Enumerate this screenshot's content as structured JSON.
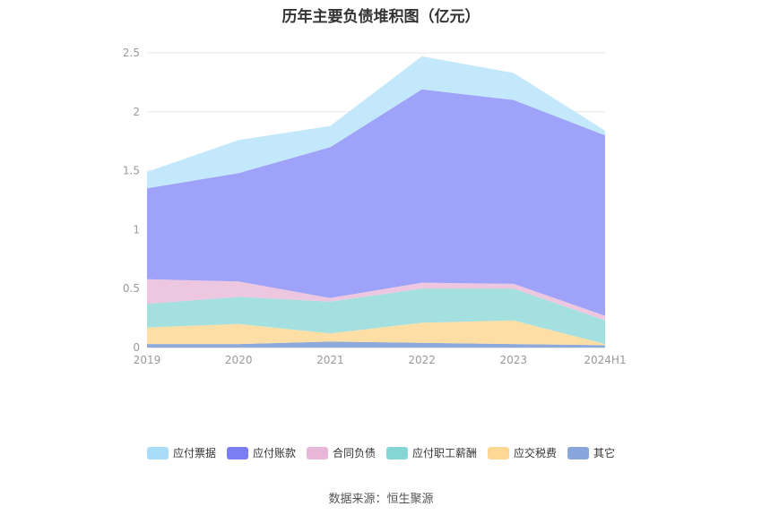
{
  "chart_data": {
    "type": "area",
    "stacked": true,
    "title": "历年主要负债堆积图（亿元）",
    "categories": [
      "2019",
      "2020",
      "2021",
      "2022",
      "2023",
      "2024H1"
    ],
    "ylim": [
      0,
      2.5
    ],
    "yticks": [
      "0",
      "0.5",
      "1",
      "1.5",
      "2",
      "2.5"
    ],
    "grid": true,
    "legend_position": "bottom",
    "series": [
      {
        "name": "其它",
        "color": "#8eaadb",
        "values": [
          0.03,
          0.03,
          0.05,
          0.04,
          0.03,
          0.02
        ]
      },
      {
        "name": "应交税费",
        "color": "#fddea4",
        "values": [
          0.14,
          0.17,
          0.07,
          0.17,
          0.2,
          0.01
        ]
      },
      {
        "name": "应付职工薪酬",
        "color": "#a4e0df",
        "values": [
          0.2,
          0.23,
          0.27,
          0.29,
          0.27,
          0.2
        ]
      },
      {
        "name": "合同负债",
        "color": "#edc7df",
        "values": [
          0.21,
          0.13,
          0.03,
          0.05,
          0.04,
          0.04
        ]
      },
      {
        "name": "应付账款",
        "color": "#9ea2f8",
        "values": [
          0.77,
          0.92,
          1.28,
          1.64,
          1.56,
          1.53
        ]
      },
      {
        "name": "应付票据",
        "color": "#c4e8fb",
        "values": [
          0.14,
          0.28,
          0.18,
          0.28,
          0.23,
          0.04
        ]
      }
    ],
    "legend_order": [
      "应付票据",
      "应付账款",
      "合同负债",
      "应付职工薪酬",
      "应交税费",
      "其它"
    ],
    "legend_colors": {
      "应付票据": "#a9dcf7",
      "应付账款": "#7b7ef0",
      "合同负债": "#e8b6d7",
      "应付职工薪酬": "#84d5d4",
      "应交税费": "#fcd894",
      "其它": "#88a6dc"
    }
  },
  "source": "数据来源：恒生聚源"
}
